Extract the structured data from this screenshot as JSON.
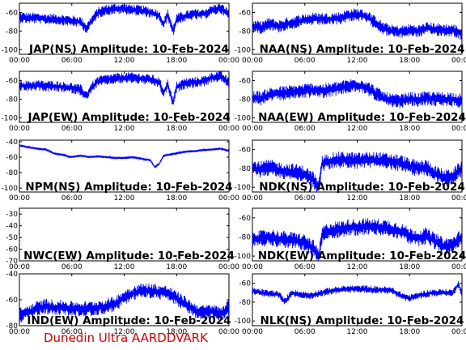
{
  "footer": "Dunedin Ultra AARDDVARK",
  "chart_data": [
    {
      "type": "line",
      "title": "JAP(NS) Amplitude: 10-Feb-2024",
      "col": 0,
      "row": 0,
      "ylim": [
        -105,
        -50
      ],
      "yticks": [
        -100,
        -80,
        -60
      ],
      "xticks": [
        "00:00",
        "06:00",
        "12:00",
        "18:00",
        "00:00"
      ],
      "color": "#0000ff",
      "x": [
        0,
        1,
        2,
        3,
        4,
        5,
        6,
        7,
        7.7,
        8.2,
        9,
        10,
        11,
        12,
        13,
        14,
        15,
        16,
        16.5,
        17,
        17.6,
        18,
        19,
        20,
        21,
        22,
        23,
        24
      ],
      "y": [
        -65,
        -66,
        -66,
        -67,
        -67,
        -68,
        -69,
        -70,
        -77,
        -70,
        -60,
        -57,
        -56,
        -56,
        -57,
        -58,
        -60,
        -63,
        -73,
        -62,
        -80,
        -67,
        -64,
        -62,
        -62,
        -58,
        -55,
        -62
      ],
      "band": 6
    },
    {
      "type": "line",
      "title": "NAA(NS) Amplitude: 10-Feb-2024",
      "col": 1,
      "row": 0,
      "ylim": [
        -105,
        -50
      ],
      "yticks": [
        -100,
        -80,
        -60
      ],
      "xticks": [
        "00:00",
        "06:00",
        "12:00",
        "18:00",
        "00:00"
      ],
      "color": "#0000ff",
      "x": [
        0,
        1,
        2,
        3,
        4,
        5,
        6,
        7,
        8,
        9,
        10,
        11,
        12,
        13,
        14,
        15,
        16,
        17,
        18,
        19,
        20,
        21,
        22,
        23,
        24
      ],
      "y": [
        -75,
        -76,
        -72,
        -75,
        -72,
        -70,
        -68,
        -67,
        -67,
        -67,
        -66,
        -63,
        -62,
        -64,
        -70,
        -77,
        -80,
        -81,
        -79,
        -80,
        -77,
        -78,
        -79,
        -79,
        -83
      ],
      "band": 7
    },
    {
      "type": "line",
      "title": "JAP(EW) Amplitude: 10-Feb-2024",
      "col": 0,
      "row": 1,
      "ylim": [
        -105,
        -50
      ],
      "yticks": [
        -100,
        -80,
        -60
      ],
      "xticks": [
        "00:00",
        "06:00",
        "12:00",
        "18:00",
        "00:00"
      ],
      "color": "#0000ff",
      "x": [
        0,
        1,
        2,
        3,
        4,
        5,
        6,
        7,
        7.7,
        8.2,
        9,
        10,
        11,
        12,
        13,
        14,
        15,
        16,
        16.5,
        17,
        17.6,
        18,
        19,
        20,
        21,
        22,
        23,
        24
      ],
      "y": [
        -65,
        -66,
        -65,
        -66,
        -66,
        -67,
        -68,
        -70,
        -77,
        -68,
        -61,
        -59,
        -58,
        -57,
        -57,
        -58,
        -59,
        -62,
        -73,
        -64,
        -85,
        -67,
        -63,
        -62,
        -61,
        -57,
        -55,
        -63
      ],
      "band": 6
    },
    {
      "type": "line",
      "title": "NAA(EW) Amplitude: 10-Feb-2024",
      "col": 1,
      "row": 1,
      "ylim": [
        -105,
        -50
      ],
      "yticks": [
        -100,
        -80,
        -60
      ],
      "xticks": [
        "00:00",
        "06:00",
        "12:00",
        "18:00",
        "00:00"
      ],
      "color": "#0000ff",
      "x": [
        0,
        1,
        2,
        3,
        4,
        5,
        6,
        7,
        8,
        9,
        10,
        11,
        12,
        13,
        14,
        15,
        16,
        17,
        18,
        19,
        20,
        21,
        22,
        23,
        24
      ],
      "y": [
        -78,
        -79,
        -75,
        -74,
        -73,
        -72,
        -71,
        -70,
        -71,
        -70,
        -68,
        -66,
        -65,
        -67,
        -73,
        -79,
        -82,
        -82,
        -80,
        -81,
        -79,
        -80,
        -80,
        -80,
        -82
      ],
      "band": 8
    },
    {
      "type": "line",
      "title": "NPM(NS) Amplitude: 10-Feb-2024",
      "col": 0,
      "row": 2,
      "ylim": [
        -105,
        -38
      ],
      "yticks": [
        -100,
        -80,
        -60,
        -40
      ],
      "xticks": [
        "00:00",
        "06:00",
        "12:00",
        "18:00",
        "00:00"
      ],
      "color": "#0000ff",
      "x": [
        0,
        1,
        2,
        3,
        4,
        5,
        6,
        7,
        8,
        9,
        10,
        11,
        12,
        13,
        14,
        15,
        15.5,
        16,
        16.5,
        17,
        18,
        19,
        20,
        21,
        22,
        23,
        24
      ],
      "y": [
        -45,
        -47,
        -49,
        -50,
        -55,
        -57,
        -60,
        -58,
        -60,
        -59,
        -60,
        -61,
        -61,
        -60,
        -62,
        -64,
        -73,
        -69,
        -58,
        -57,
        -55,
        -53,
        -52,
        -51,
        -50,
        -49,
        -52
      ],
      "band": 1.5
    },
    {
      "type": "line",
      "title": "NDK(NS) Amplitude: 10-Feb-2024",
      "col": 1,
      "row": 2,
      "ylim": [
        -105,
        -50
      ],
      "yticks": [
        -100,
        -80,
        -60
      ],
      "xticks": [
        "00:00",
        "06:00",
        "12:00",
        "18:00",
        "00:00"
      ],
      "color": "#0000ff",
      "x": [
        0,
        1,
        2,
        3,
        4,
        5,
        6,
        7,
        7.6,
        8,
        9,
        10,
        11,
        12,
        13,
        14,
        15,
        16,
        17,
        18,
        19,
        20,
        21,
        22,
        23,
        24
      ],
      "y": [
        -80,
        -81,
        -79,
        -82,
        -83,
        -84,
        -86,
        -92,
        -102,
        -75,
        -72,
        -71,
        -71,
        -72,
        -71,
        -71,
        -72,
        -73,
        -74,
        -78,
        -80,
        -79,
        -86,
        -90,
        -88,
        -80
      ],
      "band": 9
    },
    {
      "type": "line",
      "title": "NWC(EW) Amplitude: 10-Feb-2024",
      "col": 0,
      "row": 3,
      "ylim": [
        -70,
        -25
      ],
      "yticks": [
        -70,
        -60,
        -50,
        -40,
        -30
      ],
      "xticks": [
        "00:00",
        "06:00",
        "12:00",
        "18:00",
        "00:00"
      ],
      "color": "#0000ff",
      "x": [],
      "y": [],
      "band": 0
    },
    {
      "type": "line",
      "title": "NDK(EW) Amplitude: 10-Feb-2024",
      "col": 1,
      "row": 3,
      "ylim": [
        -105,
        -50
      ],
      "yticks": [
        -100,
        -80,
        -60
      ],
      "xticks": [
        "00:00",
        "06:00",
        "12:00",
        "18:00",
        "00:00"
      ],
      "color": "#0000ff",
      "x": [
        0,
        1,
        2,
        3,
        4,
        5,
        6,
        7,
        7.6,
        8,
        9,
        10,
        11,
        12,
        13,
        14,
        15,
        16,
        17,
        18,
        19,
        20,
        21,
        22,
        23,
        24
      ],
      "y": [
        -81,
        -82,
        -80,
        -82,
        -83,
        -84,
        -86,
        -92,
        -102,
        -77,
        -73,
        -72,
        -70,
        -70,
        -69,
        -70,
        -70,
        -72,
        -74,
        -79,
        -81,
        -79,
        -85,
        -90,
        -88,
        -80
      ],
      "band": 9
    },
    {
      "type": "line",
      "title": "IND(EW) Amplitude: 10-Feb-2024",
      "col": 0,
      "row": 4,
      "ylim": [
        -80,
        -40
      ],
      "yticks": [
        -80,
        -60,
        -40
      ],
      "xticks": [
        "00:00",
        "06:00",
        "12:00",
        "18:00",
        "00:00"
      ],
      "color": "#0000ff",
      "x": [
        0,
        1,
        2,
        3,
        4,
        5,
        6,
        7,
        8,
        9,
        10,
        11,
        12,
        13,
        14,
        15,
        16,
        17,
        18,
        19,
        20,
        21,
        22,
        23,
        24
      ],
      "y": [
        -72,
        -70,
        -67,
        -65,
        -66,
        -66,
        -67,
        -67,
        -67,
        -66,
        -65,
        -63,
        -58,
        -55,
        -53,
        -53,
        -54,
        -55,
        -59,
        -63,
        -68,
        -70,
        -69,
        -71,
        -66
      ],
      "band": 6
    },
    {
      "type": "line",
      "title": "NLK(NS) Amplitude: 10-Feb-2024",
      "col": 1,
      "row": 4,
      "ylim": [
        -105,
        -50
      ],
      "yticks": [
        -100,
        -80,
        -60
      ],
      "xticks": [
        "00:00",
        "06:00",
        "12:00",
        "18:00",
        "00:00"
      ],
      "color": "#0000ff",
      "x": [
        0,
        1,
        2,
        3,
        3.7,
        4.5,
        5.5,
        6.5,
        8,
        9,
        10,
        11,
        12,
        13,
        14,
        15,
        16,
        17,
        18,
        19,
        20,
        21,
        22,
        23,
        23.6,
        24
      ],
      "y": [
        -68,
        -70,
        -71,
        -72,
        -80,
        -70,
        -72,
        -73,
        -70,
        -68,
        -67,
        -66,
        -66,
        -66,
        -67,
        -67,
        -68,
        -73,
        -76,
        -73,
        -71,
        -70,
        -70,
        -70,
        -60,
        -72
      ],
      "band": 4
    }
  ]
}
